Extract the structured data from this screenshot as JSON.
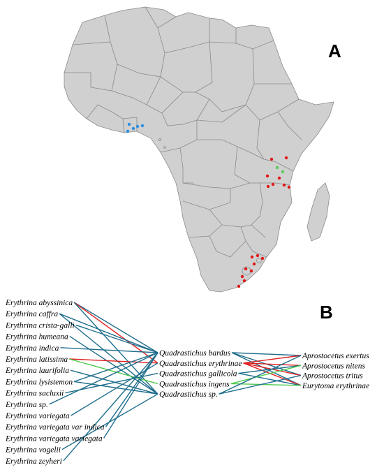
{
  "panel_a": {
    "letter": "A"
  },
  "panel_b": {
    "letter": "B"
  },
  "colors": {
    "link_blue": "#1f6e8c",
    "link_red": "#e02020",
    "link_green": "#4cc94c",
    "point_red": "#e01818",
    "point_blue": "#2a8ee0",
    "point_green": "#5ccc5c",
    "land": "#d0d0d0"
  },
  "hosts": [
    {
      "genus": "Erythrina",
      "epithet": "abyssinica"
    },
    {
      "genus": "Erythrina",
      "epithet": "caffra"
    },
    {
      "genus": "Erythrina",
      "epithet": "crista-galli"
    },
    {
      "genus": "Erythrina",
      "epithet": "humeana"
    },
    {
      "genus": "Erythrina",
      "epithet": "indica"
    },
    {
      "genus": "Erythrina",
      "epithet": "latissima"
    },
    {
      "genus": "Erythrina",
      "epithet": "laurifolia"
    },
    {
      "genus": "Erythrina",
      "epithet": "lysistemon"
    },
    {
      "genus": "Erythrina",
      "epithet": "sacluxii"
    },
    {
      "genus": "Erythrina",
      "epithet": "sp."
    },
    {
      "genus": "Erythrina",
      "epithet": "variegata"
    },
    {
      "genus": "Erythrina",
      "epithet": "variegata var indica"
    },
    {
      "genus": "Erythrina",
      "epithet": "variegata variegata"
    },
    {
      "genus": "Erythrina",
      "epithet": "vogelii"
    },
    {
      "genus": "Erythrina",
      "epithet": "zeyheri"
    }
  ],
  "gallers": [
    {
      "genus": "Quadrastichus",
      "epithet": "bardus"
    },
    {
      "genus": "Quadrastichus",
      "epithet": "erythrinae"
    },
    {
      "genus": "Quadrastichus",
      "epithet": "gallicola"
    },
    {
      "genus": "Quadrastichus",
      "epithet": "ingens"
    },
    {
      "genus": "Quadrastichus",
      "epithet": "sp."
    }
  ],
  "parasitoids": [
    {
      "genus": "Aprostocetus",
      "epithet": "exertus"
    },
    {
      "genus": "Aprostocetus",
      "epithet": "nitens"
    },
    {
      "genus": "Aprostocetus",
      "epithet": "tritus"
    },
    {
      "genus": "Eurytoma",
      "epithet": "erythrinae"
    }
  ],
  "host_galler_links": [
    [
      0,
      0,
      "blue"
    ],
    [
      0,
      1,
      "red"
    ],
    [
      0,
      4,
      "blue"
    ],
    [
      1,
      0,
      "blue"
    ],
    [
      1,
      4,
      "blue"
    ],
    [
      2,
      0,
      "blue"
    ],
    [
      3,
      4,
      "blue"
    ],
    [
      4,
      0,
      "blue"
    ],
    [
      5,
      1,
      "red"
    ],
    [
      5,
      3,
      "green"
    ],
    [
      6,
      4,
      "blue"
    ],
    [
      7,
      0,
      "blue"
    ],
    [
      7,
      4,
      "blue"
    ],
    [
      8,
      2,
      "blue"
    ],
    [
      9,
      0,
      "blue"
    ],
    [
      10,
      1,
      "blue"
    ],
    [
      11,
      0,
      "blue"
    ],
    [
      12,
      0,
      "blue"
    ],
    [
      13,
      4,
      "blue"
    ],
    [
      14,
      0,
      "blue"
    ]
  ],
  "galler_parasitoid_links": [
    [
      0,
      0,
      "blue"
    ],
    [
      0,
      2,
      "blue"
    ],
    [
      0,
      3,
      "blue"
    ],
    [
      1,
      0,
      "red"
    ],
    [
      1,
      1,
      "red"
    ],
    [
      1,
      2,
      "red"
    ],
    [
      1,
      3,
      "red"
    ],
    [
      2,
      1,
      "blue"
    ],
    [
      2,
      3,
      "blue"
    ],
    [
      3,
      1,
      "green"
    ],
    [
      3,
      3,
      "green"
    ],
    [
      4,
      0,
      "blue"
    ],
    [
      4,
      2,
      "blue"
    ]
  ]
}
